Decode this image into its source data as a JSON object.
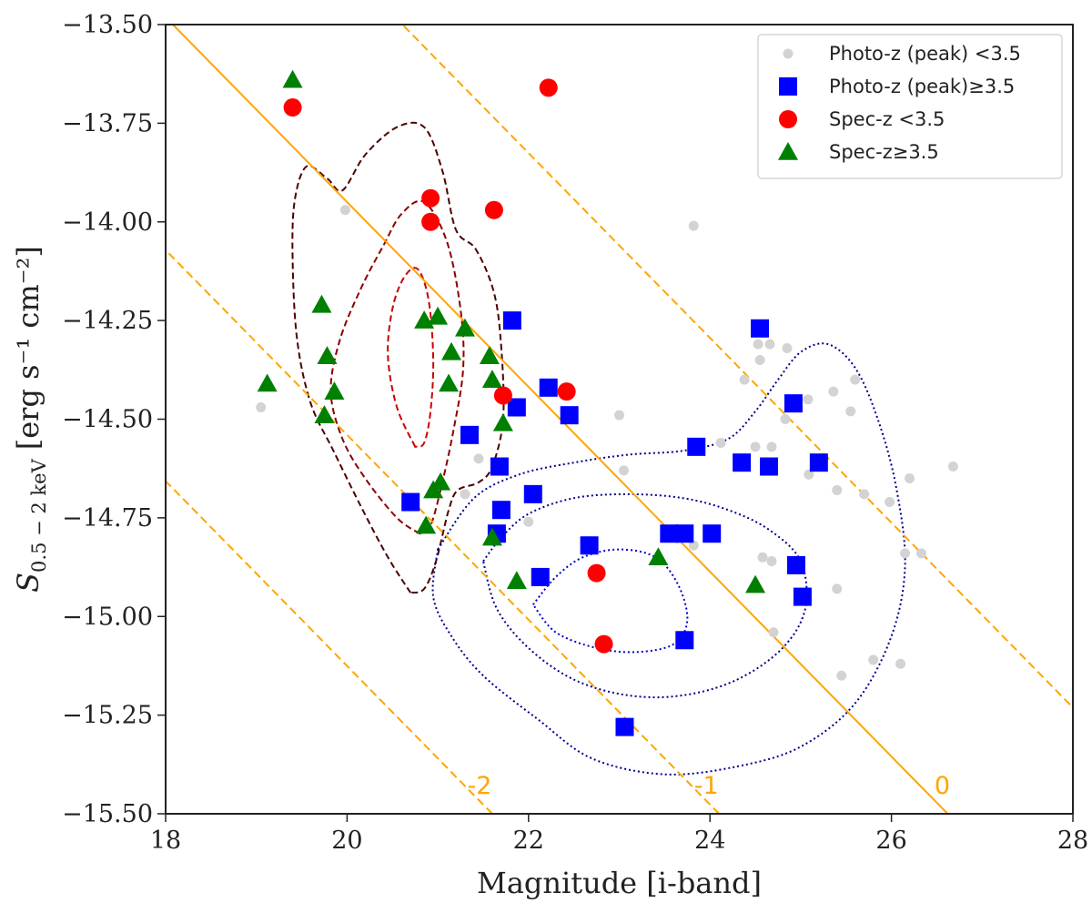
{
  "chart_data": {
    "type": "scatter",
    "xlabel": "Magnitude [i-band]",
    "ylabel": {
      "base": "S",
      "sub": "0.5 − 2 keV",
      "unit": "[erg s⁻¹ cm⁻²]"
    },
    "xlim": [
      18,
      28
    ],
    "ylim": [
      -15.5,
      -13.5
    ],
    "xticks": [
      18,
      20,
      22,
      24,
      26,
      28
    ],
    "xtick_labels": [
      "18",
      "20",
      "22",
      "24",
      "26",
      "28"
    ],
    "yticks": [
      -13.5,
      -13.75,
      -14.0,
      -14.25,
      -14.5,
      -14.75,
      -15.0,
      -15.25,
      -15.5
    ],
    "ytick_labels": [
      "−13.50",
      "−13.75",
      "−14.00",
      "−14.25",
      "−14.50",
      "−14.75",
      "−15.00",
      "−15.25",
      "−15.50"
    ],
    "grid": false,
    "legend": "top-right",
    "series": [
      {
        "name": "Photo-z (peak) <3.5",
        "marker": "circle-small",
        "color": "#d3d3d3",
        "points": [
          [
            19.05,
            -14.47
          ],
          [
            19.98,
            -13.97
          ],
          [
            23.82,
            -14.01
          ],
          [
            21.35,
            -14.53
          ],
          [
            21.45,
            -14.6
          ],
          [
            21.3,
            -14.69
          ],
          [
            22.0,
            -14.76
          ],
          [
            23.0,
            -14.49
          ],
          [
            23.05,
            -14.63
          ],
          [
            23.82,
            -14.82
          ],
          [
            24.12,
            -14.56
          ],
          [
            24.38,
            -14.4
          ],
          [
            24.53,
            -14.31
          ],
          [
            24.55,
            -14.35
          ],
          [
            24.66,
            -14.31
          ],
          [
            24.85,
            -14.32
          ],
          [
            24.83,
            -14.5
          ],
          [
            24.5,
            -14.57
          ],
          [
            24.68,
            -14.57
          ],
          [
            25.08,
            -14.45
          ],
          [
            25.09,
            -14.64
          ],
          [
            25.36,
            -14.43
          ],
          [
            25.4,
            -14.68
          ],
          [
            25.6,
            -14.4
          ],
          [
            25.55,
            -14.48
          ],
          [
            25.7,
            -14.69
          ],
          [
            25.98,
            -14.71
          ],
          [
            26.2,
            -14.65
          ],
          [
            26.68,
            -14.62
          ],
          [
            26.15,
            -14.84
          ],
          [
            26.33,
            -14.84
          ],
          [
            24.58,
            -14.85
          ],
          [
            24.68,
            -14.86
          ],
          [
            25.4,
            -14.93
          ],
          [
            24.7,
            -15.04
          ],
          [
            25.45,
            -15.15
          ],
          [
            25.8,
            -15.11
          ],
          [
            26.1,
            -15.12
          ]
        ]
      },
      {
        "name": "Photo-z (peak)≥3.5",
        "marker": "square",
        "color": "#0000ff",
        "points": [
          [
            21.82,
            -14.25
          ],
          [
            22.22,
            -14.42
          ],
          [
            21.87,
            -14.47
          ],
          [
            22.45,
            -14.49
          ],
          [
            21.35,
            -14.54
          ],
          [
            21.68,
            -14.62
          ],
          [
            20.7,
            -14.71
          ],
          [
            21.7,
            -14.73
          ],
          [
            22.05,
            -14.69
          ],
          [
            21.65,
            -14.79
          ],
          [
            22.67,
            -14.82
          ],
          [
            22.13,
            -14.9
          ],
          [
            23.55,
            -14.79
          ],
          [
            23.72,
            -14.79
          ],
          [
            24.02,
            -14.79
          ],
          [
            23.85,
            -14.57
          ],
          [
            24.35,
            -14.61
          ],
          [
            24.65,
            -14.62
          ],
          [
            24.55,
            -14.27
          ],
          [
            24.92,
            -14.46
          ],
          [
            25.2,
            -14.61
          ],
          [
            24.95,
            -14.87
          ],
          [
            25.02,
            -14.95
          ],
          [
            23.72,
            -15.06
          ],
          [
            23.06,
            -15.28
          ]
        ]
      },
      {
        "name": "Spec-z <3.5",
        "marker": "circle",
        "color": "#ff0000",
        "points": [
          [
            19.4,
            -13.71
          ],
          [
            22.22,
            -13.66
          ],
          [
            20.92,
            -13.94
          ],
          [
            20.92,
            -14.0
          ],
          [
            21.62,
            -13.97
          ],
          [
            21.72,
            -14.44
          ],
          [
            22.42,
            -14.43
          ],
          [
            22.75,
            -14.89
          ],
          [
            22.83,
            -15.07
          ]
        ]
      },
      {
        "name": "Spec-z≥3.5",
        "marker": "triangle",
        "color": "#008000",
        "points": [
          [
            19.4,
            -13.64
          ],
          [
            19.12,
            -14.41
          ],
          [
            19.72,
            -14.21
          ],
          [
            19.78,
            -14.34
          ],
          [
            19.86,
            -14.43
          ],
          [
            19.75,
            -14.49
          ],
          [
            20.85,
            -14.25
          ],
          [
            21.0,
            -14.24
          ],
          [
            21.3,
            -14.27
          ],
          [
            21.15,
            -14.33
          ],
          [
            21.12,
            -14.41
          ],
          [
            21.57,
            -14.34
          ],
          [
            21.6,
            -14.4
          ],
          [
            21.72,
            -14.51
          ],
          [
            20.95,
            -14.68
          ],
          [
            21.03,
            -14.66
          ],
          [
            20.87,
            -14.77
          ],
          [
            21.6,
            -14.8
          ],
          [
            21.87,
            -14.91
          ],
          [
            23.43,
            -14.85
          ],
          [
            24.5,
            -14.92
          ]
        ]
      }
    ],
    "reference_lines": [
      {
        "label": "-2",
        "style": "dashed",
        "color": "#ffa500",
        "x_at_ymin": 21.6,
        "slope_dx_per_dy": -4.27
      },
      {
        "label": "-1",
        "style": "dashed",
        "color": "#ffa500",
        "x_at_ymin": 24.1,
        "slope_dx_per_dy": -4.27
      },
      {
        "label": "0",
        "style": "solid",
        "color": "#ffa500",
        "x_at_ymin": 26.62,
        "slope_dx_per_dy": -4.27
      },
      {
        "label": "",
        "style": "dashed",
        "color": "#ffa500",
        "x_at_ymin": 29.15,
        "slope_dx_per_dy": -4.27
      }
    ],
    "contours": [
      {
        "group": "spec-z",
        "style": "dashed",
        "color": "#4d0000",
        "points": [
          [
            20.7,
            -14.94
          ],
          [
            20.45,
            -14.85
          ],
          [
            20.15,
            -14.72
          ],
          [
            19.85,
            -14.58
          ],
          [
            19.6,
            -14.46
          ],
          [
            19.45,
            -14.3
          ],
          [
            19.4,
            -14.1
          ],
          [
            19.42,
            -13.95
          ],
          [
            19.55,
            -13.86
          ],
          [
            19.78,
            -13.89
          ],
          [
            19.95,
            -13.92
          ],
          [
            20.2,
            -13.83
          ],
          [
            20.55,
            -13.76
          ],
          [
            20.85,
            -13.76
          ],
          [
            21.05,
            -13.87
          ],
          [
            21.2,
            -14.02
          ],
          [
            21.42,
            -14.07
          ],
          [
            21.62,
            -14.18
          ],
          [
            21.7,
            -14.32
          ],
          [
            21.72,
            -14.5
          ],
          [
            21.6,
            -14.62
          ],
          [
            21.45,
            -14.66
          ],
          [
            21.22,
            -14.68
          ],
          [
            21.12,
            -14.73
          ],
          [
            20.98,
            -14.86
          ],
          [
            20.85,
            -14.93
          ],
          [
            20.7,
            -14.94
          ]
        ]
      },
      {
        "group": "spec-z",
        "style": "dashed",
        "color": "#8b0000",
        "points": [
          [
            20.8,
            -14.79
          ],
          [
            20.55,
            -14.75
          ],
          [
            20.2,
            -14.65
          ],
          [
            19.95,
            -14.55
          ],
          [
            19.82,
            -14.43
          ],
          [
            19.92,
            -14.3
          ],
          [
            20.15,
            -14.17
          ],
          [
            20.4,
            -14.06
          ],
          [
            20.6,
            -13.98
          ],
          [
            20.85,
            -13.95
          ],
          [
            21.1,
            -14.05
          ],
          [
            21.25,
            -14.22
          ],
          [
            21.28,
            -14.37
          ],
          [
            21.18,
            -14.52
          ],
          [
            21.05,
            -14.66
          ],
          [
            20.92,
            -14.77
          ],
          [
            20.8,
            -14.79
          ]
        ]
      },
      {
        "group": "spec-z",
        "style": "dashed",
        "color": "#cc0000",
        "points": [
          [
            20.75,
            -14.57
          ],
          [
            20.55,
            -14.47
          ],
          [
            20.45,
            -14.34
          ],
          [
            20.5,
            -14.22
          ],
          [
            20.63,
            -14.14
          ],
          [
            20.78,
            -14.12
          ],
          [
            20.9,
            -14.2
          ],
          [
            20.95,
            -14.35
          ],
          [
            20.92,
            -14.48
          ],
          [
            20.85,
            -14.56
          ],
          [
            20.75,
            -14.57
          ]
        ]
      },
      {
        "group": "photo-z",
        "style": "dotted",
        "color": "#00008b",
        "points": [
          [
            21.0,
            -14.83
          ],
          [
            21.4,
            -14.7
          ],
          [
            21.9,
            -14.64
          ],
          [
            22.5,
            -14.61
          ],
          [
            23.1,
            -14.59
          ],
          [
            23.7,
            -14.58
          ],
          [
            24.2,
            -14.55
          ],
          [
            24.5,
            -14.48
          ],
          [
            24.75,
            -14.4
          ],
          [
            25.0,
            -14.33
          ],
          [
            25.3,
            -14.31
          ],
          [
            25.6,
            -14.37
          ],
          [
            25.85,
            -14.5
          ],
          [
            26.05,
            -14.67
          ],
          [
            26.15,
            -14.87
          ],
          [
            26.0,
            -15.05
          ],
          [
            25.6,
            -15.22
          ],
          [
            25.0,
            -15.33
          ],
          [
            24.3,
            -15.38
          ],
          [
            23.5,
            -15.4
          ],
          [
            22.7,
            -15.36
          ],
          [
            22.1,
            -15.26
          ],
          [
            21.5,
            -15.15
          ],
          [
            21.15,
            -15.05
          ],
          [
            20.95,
            -14.95
          ],
          [
            21.0,
            -14.83
          ]
        ]
      },
      {
        "group": "photo-z",
        "style": "dotted",
        "color": "#00008b",
        "points": [
          [
            21.5,
            -14.86
          ],
          [
            21.7,
            -14.8
          ],
          [
            22.0,
            -14.74
          ],
          [
            22.5,
            -14.7
          ],
          [
            23.1,
            -14.69
          ],
          [
            23.7,
            -14.7
          ],
          [
            24.2,
            -14.73
          ],
          [
            24.65,
            -14.78
          ],
          [
            25.0,
            -14.86
          ],
          [
            25.05,
            -14.98
          ],
          [
            24.8,
            -15.08
          ],
          [
            24.3,
            -15.16
          ],
          [
            23.7,
            -15.2
          ],
          [
            23.1,
            -15.2
          ],
          [
            22.5,
            -15.16
          ],
          [
            22.0,
            -15.08
          ],
          [
            21.65,
            -14.98
          ],
          [
            21.5,
            -14.86
          ]
        ]
      },
      {
        "group": "photo-z",
        "style": "dotted",
        "color": "#0000cc",
        "points": [
          [
            22.05,
            -14.97
          ],
          [
            22.3,
            -14.9
          ],
          [
            22.6,
            -14.85
          ],
          [
            23.0,
            -14.83
          ],
          [
            23.4,
            -14.85
          ],
          [
            23.65,
            -14.92
          ],
          [
            23.75,
            -15.01
          ],
          [
            23.6,
            -15.07
          ],
          [
            23.2,
            -15.09
          ],
          [
            22.75,
            -15.08
          ],
          [
            22.3,
            -15.04
          ],
          [
            22.05,
            -14.97
          ]
        ]
      }
    ]
  }
}
